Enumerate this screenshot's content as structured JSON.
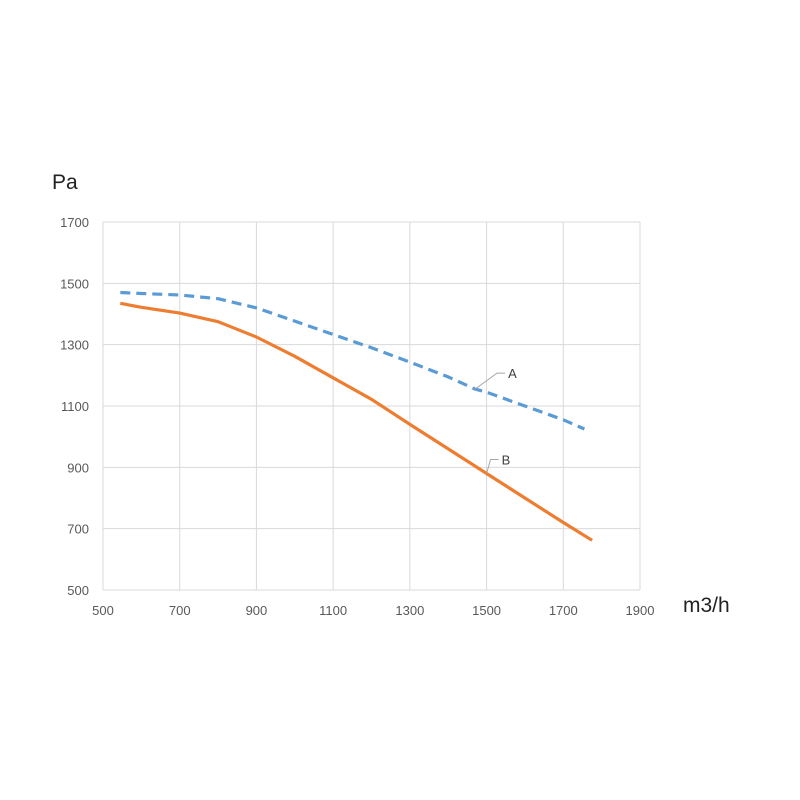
{
  "chart_data": {
    "type": "line",
    "xlabel": "m3/h",
    "ylabel": "Pa",
    "xlim": [
      500,
      1900
    ],
    "ylim": [
      500,
      1700
    ],
    "xticks": [
      "500",
      "700",
      "900",
      "1100",
      "1300",
      "1500",
      "1700",
      "1900"
    ],
    "yticks": [
      "500",
      "700",
      "900",
      "1100",
      "1300",
      "1500",
      "1700"
    ],
    "grid": true,
    "series": [
      {
        "name": "A",
        "style": "dashed",
        "color": "#5b9bd5",
        "x": [
          545,
          600,
          700,
          800,
          900,
          1000,
          1100,
          1200,
          1300,
          1400,
          1470,
          1500,
          1600,
          1700,
          1755
        ],
        "y": [
          1470,
          1467,
          1462,
          1450,
          1420,
          1377,
          1333,
          1290,
          1243,
          1195,
          1155,
          1145,
          1100,
          1055,
          1025
        ]
      },
      {
        "name": "B",
        "style": "solid",
        "color": "#ed7d31",
        "x": [
          545,
          600,
          700,
          800,
          900,
          1000,
          1100,
          1200,
          1300,
          1400,
          1500,
          1600,
          1700,
          1775
        ],
        "y": [
          1435,
          1422,
          1403,
          1375,
          1325,
          1262,
          1192,
          1122,
          1040,
          960,
          880,
          800,
          720,
          662
        ]
      }
    ]
  }
}
